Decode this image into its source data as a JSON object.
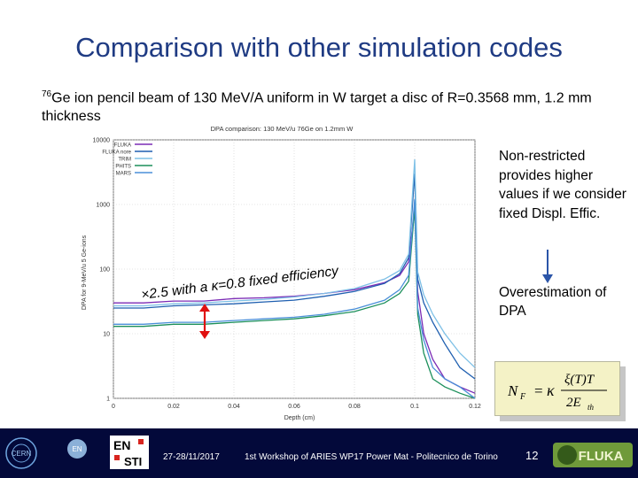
{
  "slide": {
    "title": "Comparison with other simulation codes",
    "subtitle_sup": "76",
    "subtitle_text": "Ge ion pencil beam of 130 MeV/A uniform in W target a disc of R=0.3568 mm, 1.2 mm thickness",
    "side_note": "Non-restricted provides higher values if we consider fixed Displ. Effic.",
    "overestimation": "Overestimation of DPA",
    "annotation": "×2.5 with a κ=0.8 fixed efficiency",
    "formula": {
      "lhs": "N",
      "lhs_sub": "F",
      "equals": "=",
      "kappa": "κ",
      "num": "ξ(T)T",
      "den": "2E",
      "den_sub": "th"
    }
  },
  "footer": {
    "date": "27-28/11/2017",
    "workshop": "1st Workshop of ARIES WP17 Power Mat - Politecnico de Torino",
    "page": "12",
    "logo_cern": "CERN",
    "logo_en": "EN",
    "logo_ensti_top": "EN",
    "logo_ensti_bottom": "STI",
    "logo_fluka": "FLUKA"
  },
  "chart_data": {
    "type": "line",
    "title": "DPA comparison: 130 MeV/u 76Ge on 1.2mm W",
    "xlabel": "Depth (cm)",
    "ylabel": "DPA for 9-MeV/u 5 Ge-ions",
    "xlim": [
      0,
      0.12
    ],
    "ylim": [
      1,
      10000
    ],
    "yscale": "log",
    "x_ticks": [
      "0",
      "0.02",
      "0.04",
      "0.06",
      "0.08",
      "0.1",
      "0.12"
    ],
    "y_ticks": [
      "1",
      "10",
      "100",
      "1000",
      "10000"
    ],
    "grid": true,
    "legend_position": "top-left",
    "x": [
      0,
      0.01,
      0.02,
      0.03,
      0.04,
      0.05,
      0.06,
      0.07,
      0.08,
      0.09,
      0.095,
      0.098,
      0.1,
      0.101,
      0.103,
      0.106,
      0.11,
      0.115,
      0.12
    ],
    "series": [
      {
        "name": "FLUKA",
        "color": "#7b2bb5",
        "values": [
          30,
          30,
          32,
          32,
          35,
          36,
          38,
          42,
          48,
          62,
          80,
          130,
          900,
          45,
          10,
          4,
          2,
          1.5,
          1.2
        ]
      },
      {
        "name": "FLUKA nore",
        "color": "#1f5fb0",
        "values": [
          25,
          25,
          27,
          28,
          29,
          31,
          33,
          38,
          45,
          60,
          85,
          150,
          3000,
          70,
          30,
          15,
          7,
          3,
          2
        ]
      },
      {
        "name": "TRIM",
        "color": "#7ec0e6",
        "values": [
          27,
          27,
          29,
          30,
          32,
          34,
          37,
          42,
          50,
          70,
          95,
          170,
          5000,
          90,
          40,
          20,
          10,
          5,
          3
        ]
      },
      {
        "name": "PHITS",
        "color": "#1b8f5a",
        "values": [
          13,
          13,
          14,
          14,
          15,
          16,
          17,
          19,
          22,
          30,
          42,
          65,
          900,
          20,
          5,
          2,
          1.5,
          1.2,
          1
        ]
      },
      {
        "name": "MARS",
        "color": "#4a8fd8",
        "values": [
          14,
          14,
          15,
          15,
          16,
          17,
          18,
          20,
          24,
          33,
          48,
          80,
          1200,
          25,
          8,
          3,
          2,
          1.5,
          1
        ]
      }
    ]
  }
}
